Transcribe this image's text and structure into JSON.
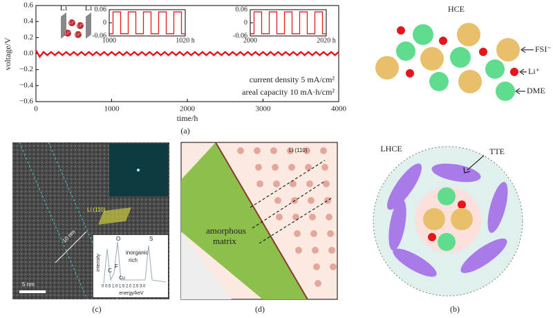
{
  "chart_data": [
    {
      "type": "line",
      "x_label": "time/h",
      "y_label": "voltage/V",
      "xlim": [
        0,
        4000
      ],
      "ylim": [
        -0.6,
        0.6
      ],
      "xticks": [
        0,
        1000,
        2000,
        3000,
        4000
      ],
      "yticks": [
        {
          "value": 0.6,
          "label": "0.6"
        },
        {
          "value": 0.4,
          "label": "0.4"
        },
        {
          "value": 0.2,
          "label": "0.2"
        },
        {
          "value": 0,
          "label": "0.0"
        },
        {
          "value": -0.2,
          "label": "−0.2"
        },
        {
          "value": -0.4,
          "label": "−0.4"
        },
        {
          "value": -0.6,
          "label": "−0.6"
        }
      ],
      "series": [
        {
          "color": "#e8141b",
          "x": [
            0,
            50,
            100,
            150,
            200,
            250,
            300,
            350,
            400,
            450,
            500,
            550,
            600,
            650,
            700,
            750,
            800,
            850,
            900,
            950,
            1000,
            1050,
            1100,
            1150,
            1200,
            1250,
            1300,
            1350,
            1400,
            1450,
            1500,
            1550,
            1600,
            1650,
            1700,
            1750,
            1800,
            1850,
            1900,
            1950,
            2000,
            2050,
            2100,
            2150,
            2200,
            2250,
            2300,
            2350,
            2400,
            2450,
            2500,
            2550,
            2600,
            2650,
            2700,
            2750,
            2800,
            2850,
            2900,
            2950,
            3000,
            3050,
            3100,
            3150,
            3200,
            3250,
            3300,
            3350,
            3400,
            3450,
            3500,
            3550,
            3600,
            3650,
            3700,
            3750,
            3800,
            3850,
            3900,
            3950,
            4000
          ],
          "values": [
            0.04,
            -0.04,
            0.02,
            -0.02,
            0.02,
            -0.02,
            0.02,
            -0.02,
            0.02,
            -0.02,
            0.02,
            -0.02,
            0.02,
            -0.02,
            0.02,
            -0.02,
            0.02,
            -0.02,
            0.02,
            -0.02,
            0.02,
            -0.02,
            0.02,
            -0.02,
            0.02,
            -0.02,
            0.02,
            -0.02,
            0.02,
            -0.02,
            0.02,
            -0.02,
            0.02,
            -0.02,
            0.02,
            -0.02,
            0.02,
            -0.02,
            0.02,
            -0.02,
            0.02,
            -0.02,
            0.02,
            -0.02,
            0.02,
            -0.02,
            0.02,
            -0.02,
            0.02,
            -0.02,
            0.02,
            -0.02,
            0.02,
            -0.02,
            0.02,
            -0.02,
            0.02,
            -0.02,
            0.02,
            -0.02,
            0.02,
            -0.02,
            0.02,
            -0.02,
            0.02,
            -0.02,
            0.02,
            -0.02,
            0.02,
            -0.02,
            0.02,
            -0.02,
            0.02,
            -0.02,
            0.02,
            -0.02,
            0.02,
            -0.02,
            0.02,
            -0.02,
            0.02
          ]
        }
      ],
      "annotations": [
        "current density 5 mA/cm²",
        "areal capacity 10 mA·h/cm²",
        "Li",
        "Li",
        "Li⁺",
        "Li⁺",
        "Li⁺",
        "Li⁺"
      ],
      "label": "(a)"
    },
    {
      "type": "line",
      "xlim": [
        1000,
        1020
      ],
      "ylim": [
        -0.06,
        0.06
      ],
      "xticks": [
        1000,
        {
          "value": 1020,
          "label": "1020 h"
        }
      ],
      "yticks": [
        0.06,
        0,
        -0.06
      ],
      "series": [
        {
          "color": "#e8141b",
          "x": [
            1000,
            1001,
            1001,
            1003,
            1003,
            1005,
            1005,
            1007,
            1007,
            1009,
            1009,
            1011,
            1011,
            1013,
            1013,
            1015,
            1015,
            1017,
            1017,
            1019,
            1019,
            1020
          ],
          "values": [
            -0.05,
            -0.05,
            0.05,
            0.05,
            -0.05,
            -0.05,
            0.05,
            0.05,
            -0.05,
            -0.05,
            0.05,
            0.05,
            -0.05,
            -0.05,
            0.05,
            0.05,
            -0.05,
            -0.05,
            0.05,
            0.05,
            -0.05,
            -0.05
          ]
        }
      ]
    },
    {
      "type": "line",
      "xlim": [
        2000,
        2020
      ],
      "ylim": [
        -0.06,
        0.06
      ],
      "xticks": [
        2000,
        {
          "value": 2020,
          "label": "2020 h"
        }
      ],
      "yticks": [
        0.06,
        0,
        -0.06
      ],
      "series": [
        {
          "color": "#e8141b",
          "x": [
            2000,
            2001,
            2001,
            2003,
            2003,
            2005,
            2005,
            2007,
            2007,
            2009,
            2009,
            2011,
            2011,
            2013,
            2013,
            2015,
            2015,
            2017,
            2017,
            2019,
            2019,
            2020
          ],
          "values": [
            -0.05,
            -0.05,
            0.05,
            0.05,
            -0.05,
            -0.05,
            0.05,
            0.05,
            -0.05,
            -0.05,
            0.05,
            0.05,
            -0.05,
            -0.05,
            0.05,
            0.05,
            -0.05,
            -0.05,
            0.05,
            0.05,
            -0.05,
            -0.05
          ]
        }
      ]
    }
  ],
  "panels": {
    "b": {
      "hce": "HCE",
      "fsi": "FSI⁻",
      "li": "Li⁺",
      "dme": "DME",
      "lhce": "LHCE",
      "tte": "TTE",
      "label": "(b)"
    },
    "c": {
      "plane": "Li (110)",
      "len1": "10 nm",
      "scale": "5 nm",
      "o": "O",
      "s": "S",
      "c": "C",
      "f": "F",
      "cu": "Cu",
      "rich1": "inorganic",
      "rich2": "rich",
      "ylab": "intensity",
      "xlab": "energy/keV",
      "ticks": "0 0.5 1.0 1.5 2.0 2.5 3.0",
      "label": "(c)"
    },
    "d": {
      "matrix1": "amorphous",
      "matrix2": "matrix",
      "plane": "Li (110)",
      "label": "(d)"
    }
  }
}
